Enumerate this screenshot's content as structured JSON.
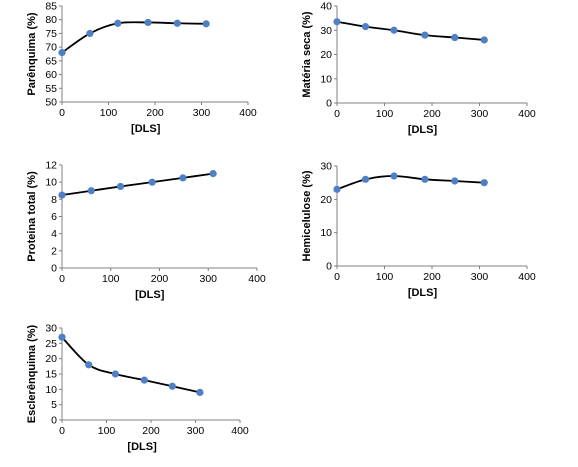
{
  "chart_data": [
    {
      "type": "line",
      "xlabel": "[DLS]",
      "ylabel": "Parênquima (%)",
      "xlim": [
        0,
        400
      ],
      "ylim": [
        50,
        85
      ],
      "xticks": [
        0,
        100,
        200,
        300,
        400
      ],
      "yticks": [
        50,
        55,
        60,
        65,
        70,
        75,
        80,
        85
      ],
      "grid": false,
      "series": [
        {
          "x": [
            0,
            60,
            120,
            185,
            248,
            310
          ],
          "y": [
            68,
            75,
            78.7,
            79,
            78.7,
            78.5
          ]
        }
      ]
    },
    {
      "type": "line",
      "xlabel": "[DLS]",
      "ylabel": "Matéria seca (%)",
      "xlim": [
        0,
        400
      ],
      "ylim": [
        0,
        40
      ],
      "xticks": [
        0,
        100,
        200,
        300,
        400
      ],
      "yticks": [
        0,
        10,
        20,
        30,
        40
      ],
      "grid": false,
      "series": [
        {
          "x": [
            0,
            60,
            120,
            185,
            248,
            310
          ],
          "y": [
            33.5,
            31.5,
            30,
            28,
            27,
            26
          ]
        }
      ]
    },
    {
      "type": "line",
      "xlabel": "[DLS]",
      "ylabel": "Proteina total (%)",
      "xlim": [
        0,
        400
      ],
      "ylim": [
        0,
        12
      ],
      "xticks": [
        0,
        100,
        200,
        300,
        400
      ],
      "yticks": [
        0,
        2,
        4,
        6,
        8,
        10,
        12
      ],
      "grid": false,
      "series": [
        {
          "x": [
            0,
            60,
            120,
            185,
            248,
            310
          ],
          "y": [
            8.5,
            9,
            9.5,
            10,
            10.5,
            11
          ]
        }
      ]
    },
    {
      "type": "line",
      "xlabel": "[DLS]",
      "ylabel": "Hemicelulose (%)",
      "xlim": [
        0,
        400
      ],
      "ylim": [
        0,
        30
      ],
      "xticks": [
        0,
        100,
        200,
        300,
        400
      ],
      "yticks": [
        0,
        10,
        20,
        30
      ],
      "grid": false,
      "series": [
        {
          "x": [
            0,
            60,
            120,
            185,
            248,
            310
          ],
          "y": [
            23,
            26,
            27,
            26,
            25.5,
            25
          ]
        }
      ]
    },
    {
      "type": "line",
      "xlabel": "[DLS]",
      "ylabel": "Esclerênquima (%)",
      "xlim": [
        0,
        400
      ],
      "ylim": [
        0,
        30
      ],
      "xticks": [
        0,
        100,
        200,
        300,
        400
      ],
      "yticks": [
        0,
        5,
        10,
        15,
        20,
        25,
        30
      ],
      "grid": false,
      "series": [
        {
          "x": [
            0,
            60,
            120,
            185,
            248,
            310
          ],
          "y": [
            27,
            18,
            15,
            13,
            11,
            9
          ]
        }
      ]
    }
  ],
  "colors": {
    "line": "#000000",
    "marker": "#4f7fc4",
    "axis": "#808080"
  }
}
